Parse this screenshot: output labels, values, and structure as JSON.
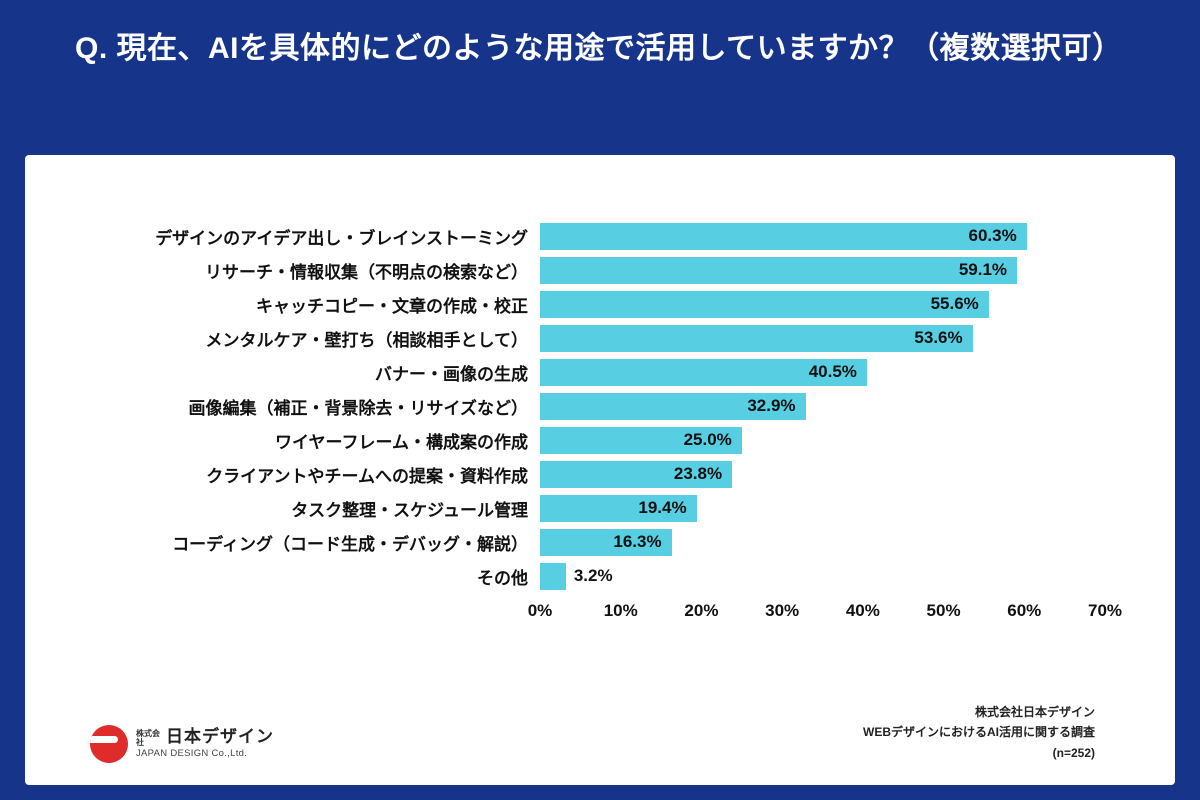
{
  "header": {
    "title": "Q. 現在、AIを具体的にどのような用途で活用していますか？（複数選択可）"
  },
  "chart_data": {
    "type": "bar",
    "orientation": "horizontal",
    "title": "Q. 現在、AIを具体的にどのような用途で活用していますか？（複数選択可）",
    "categories": [
      "デザインのアイデア出し・ブレインストーミング",
      "リサーチ・情報収集（不明点の検索など）",
      "キャッチコピー・文章の作成・校正",
      "メンタルケア・壁打ち（相談相手として）",
      "バナー・画像の生成",
      "画像編集（補正・背景除去・リサイズなど）",
      "ワイヤーフレーム・構成案の作成",
      "クライアントやチームへの提案・資料作成",
      "タスク整理・スケジュール管理",
      "コーディング（コード生成・デバッグ・解説）",
      "その他"
    ],
    "values": [
      60.3,
      59.1,
      55.6,
      53.6,
      40.5,
      32.9,
      25.0,
      23.8,
      19.4,
      16.3,
      3.2
    ],
    "value_labels": [
      "60.3%",
      "59.1%",
      "55.6%",
      "53.6%",
      "40.5%",
      "32.9%",
      "25.0%",
      "23.8%",
      "19.4%",
      "16.3%",
      "3.2%"
    ],
    "xlabel": "",
    "ylabel": "",
    "xlim": [
      0,
      70
    ],
    "x_ticks": [
      "0%",
      "10%",
      "20%",
      "30%",
      "40%",
      "50%",
      "60%",
      "70%"
    ],
    "grid": false,
    "legend": false,
    "bar_color": "#57cee2"
  },
  "footer": {
    "logo": {
      "company_prefix": "株式会社",
      "company_name": "日本デザイン",
      "company_en": "JAPAN DESIGN Co.,Ltd."
    },
    "source": {
      "line1": "株式会社日本デザイン",
      "line2": "WEBデザインにおけるAI活用に関する調査",
      "line3": "(n=252)"
    }
  },
  "colors": {
    "background": "#17348b",
    "card": "#ffffff",
    "bar": "#57cee2",
    "title_text": "#ffffff",
    "body_text": "#111111",
    "logo_red": "#e02b2b"
  }
}
